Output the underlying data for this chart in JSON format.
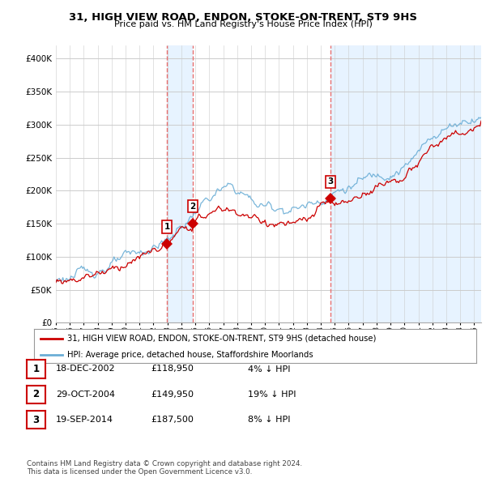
{
  "title": "31, HIGH VIEW ROAD, ENDON, STOKE-ON-TRENT, ST9 9HS",
  "subtitle": "Price paid vs. HM Land Registry's House Price Index (HPI)",
  "legend_line1": "31, HIGH VIEW ROAD, ENDON, STOKE-ON-TRENT, ST9 9HS (detached house)",
  "legend_line2": "HPI: Average price, detached house, Staffordshire Moorlands",
  "footer": "Contains HM Land Registry data © Crown copyright and database right 2024.\nThis data is licensed under the Open Government Licence v3.0.",
  "transactions": [
    {
      "num": 1,
      "date": "18-DEC-2002",
      "price": "£118,950",
      "hpi": "4% ↓ HPI",
      "year": 2002.96
    },
    {
      "num": 2,
      "date": "29-OCT-2004",
      "price": "£149,950",
      "hpi": "19% ↓ HPI",
      "year": 2004.83
    },
    {
      "num": 3,
      "date": "19-SEP-2014",
      "price": "£187,500",
      "hpi": "8% ↓ HPI",
      "year": 2014.71
    }
  ],
  "transaction_prices": [
    118950,
    149950,
    187500
  ],
  "hpi_color": "#6baed6",
  "price_color": "#cc0000",
  "vline_color": "#e87070",
  "shade_color": "#ddeeff",
  "background_color": "#ffffff",
  "grid_color": "#cccccc",
  "ylim": [
    0,
    420000
  ],
  "xlim_start": 1995.0,
  "xlim_end": 2025.5
}
